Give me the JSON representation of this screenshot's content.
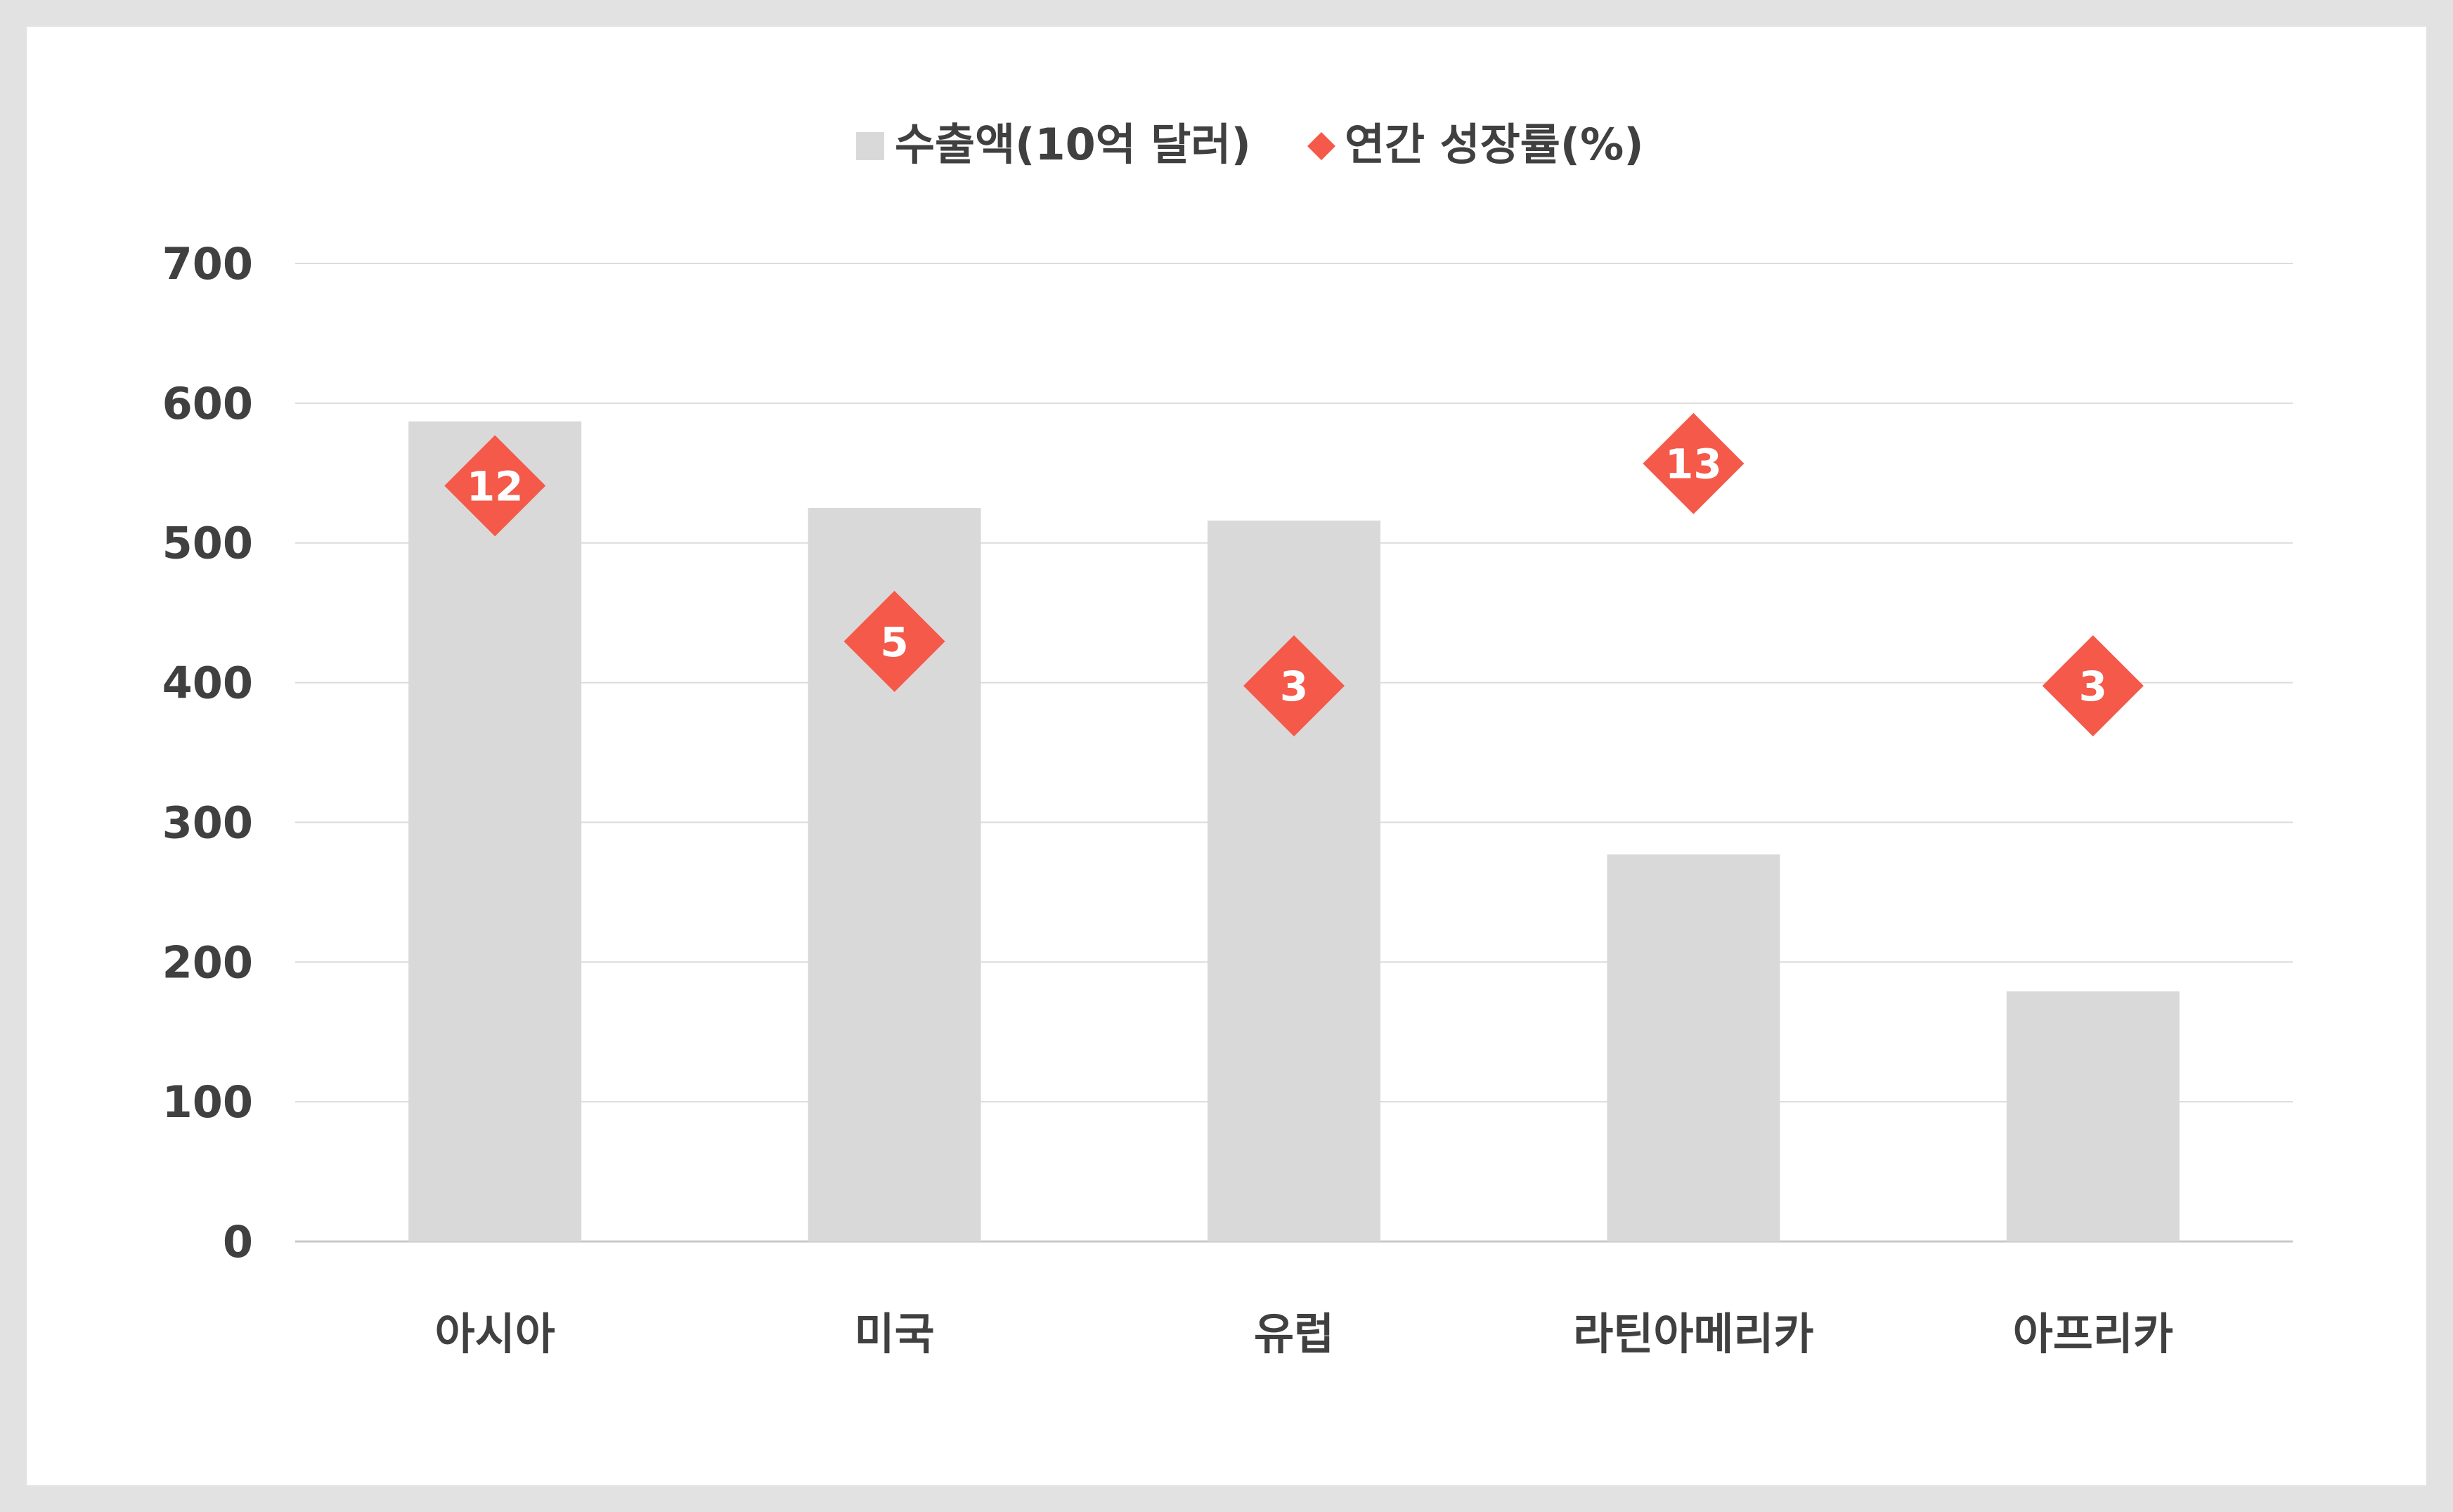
{
  "chart_data": {
    "type": "bar",
    "categories": [
      "아시아",
      "미국",
      "유럽",
      "라틴아메리카",
      "아프리카"
    ],
    "series": [
      {
        "name": "수출액(10억 달러)",
        "type": "bar",
        "values": [
          587,
          525,
          516,
          277,
          179
        ],
        "color": "#d9d9d9",
        "axis": "left"
      },
      {
        "name": "연간 성장률(%)",
        "type": "scatter",
        "marker": "diamond",
        "values": [
          12,
          5,
          3,
          13,
          3
        ],
        "color": "#f4594a",
        "secondary_axis_range": [
          -22,
          22
        ]
      }
    ],
    "y_ticks": [
      "0",
      "100",
      "200",
      "300",
      "400",
      "500",
      "600",
      "700"
    ],
    "ylim": [
      0,
      700
    ],
    "grid": true,
    "legend_position": "top-center"
  }
}
